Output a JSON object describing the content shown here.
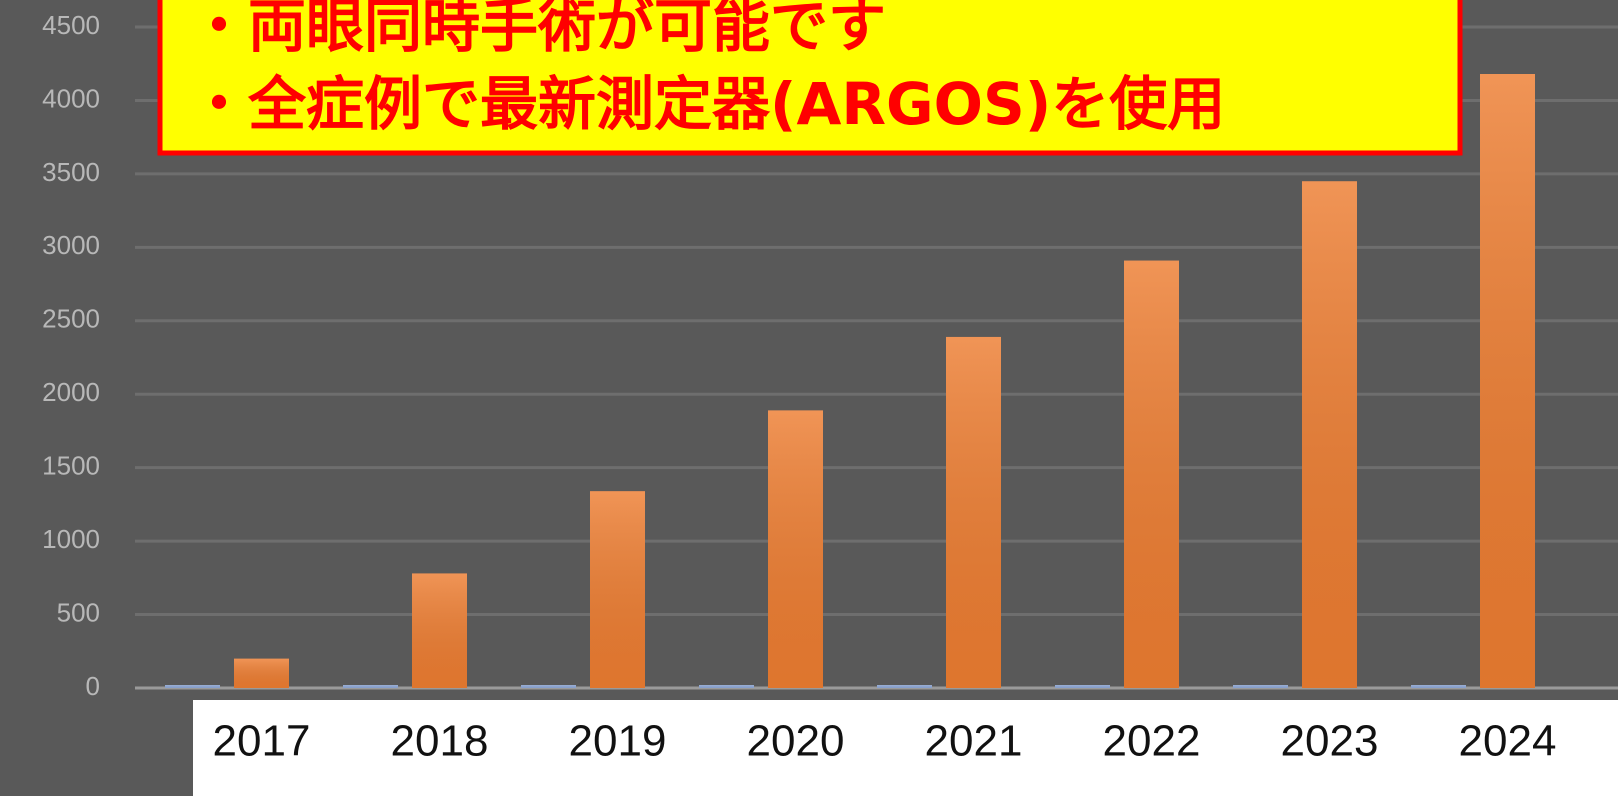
{
  "chart_data": {
    "type": "bar",
    "annotations": [
      "・両眼同時手術が可能です",
      "・全症例で最新測定器(ARGOS)を使用"
    ],
    "categories": [
      "2017",
      "2018",
      "2019",
      "2020",
      "2021",
      "2022",
      "2023",
      "2024"
    ],
    "series": [
      {
        "color": "#8fa9d8",
        "values": [
          20,
          20,
          20,
          20,
          20,
          20,
          20,
          20
        ]
      },
      {
        "color": "#ed7d31",
        "values": [
          200,
          780,
          1340,
          1890,
          2390,
          2910,
          3450,
          4180
        ]
      }
    ],
    "ylim": [
      0,
      4500
    ],
    "yticks": [
      0,
      500,
      1000,
      1500,
      2000,
      2500,
      3000,
      3500,
      4000,
      4500
    ],
    "grid": true
  }
}
